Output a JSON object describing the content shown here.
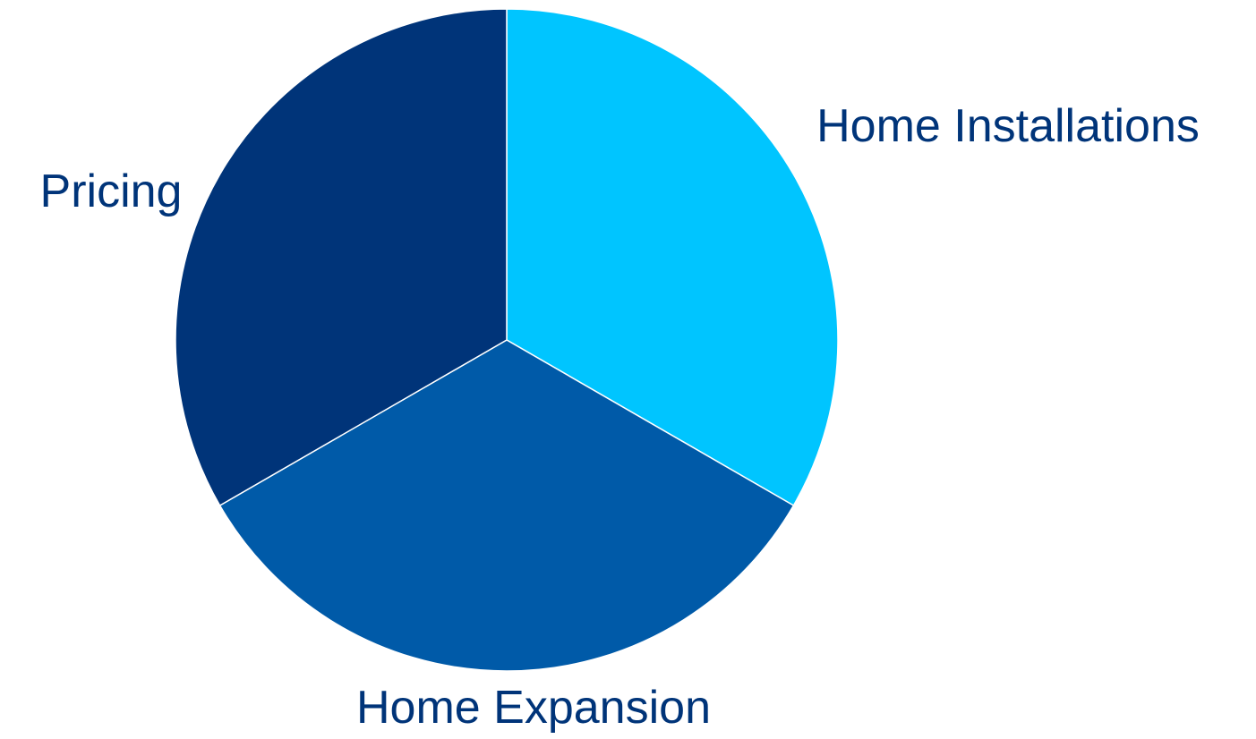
{
  "chart_data": {
    "type": "pie",
    "title": "",
    "categories": [
      "Home Installations",
      "Home Expansion",
      "Pricing"
    ],
    "values": [
      1,
      1,
      1
    ],
    "colors": [
      "#00C5FF",
      "#005AA8",
      "#003479"
    ],
    "label_color": "#003479",
    "legend": "none",
    "start_angle_deg": 0,
    "direction": "clockwise",
    "data_labels": "category names outside slices"
  }
}
